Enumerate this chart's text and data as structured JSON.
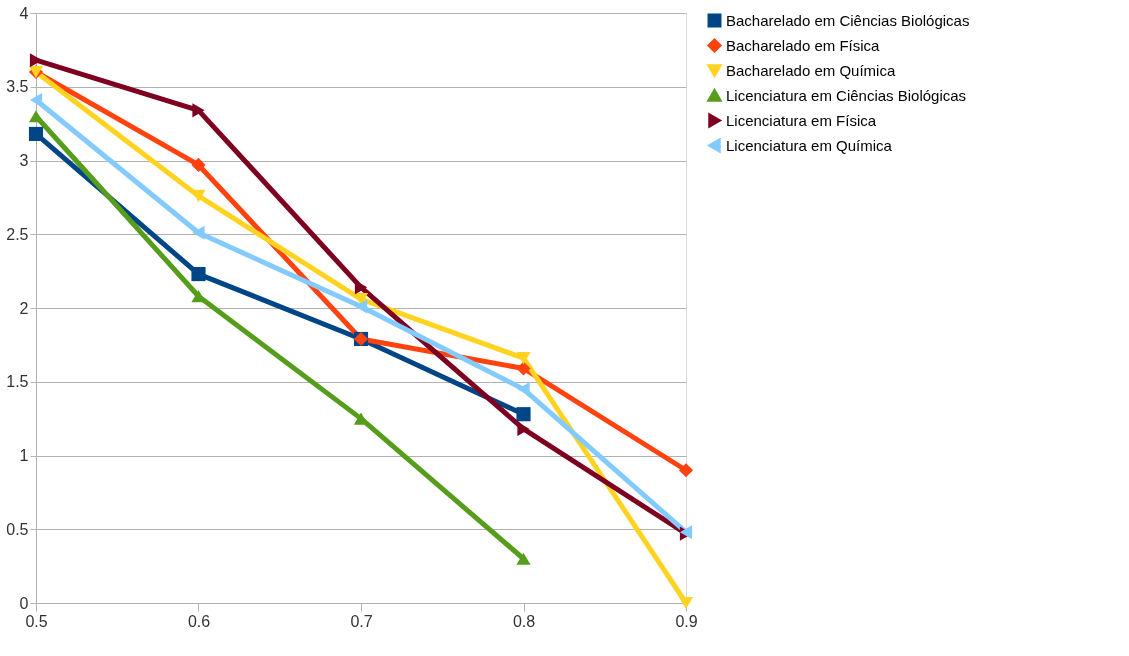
{
  "chart_data": {
    "type": "line",
    "x": [
      0.5,
      0.6,
      0.7,
      0.8,
      0.9
    ],
    "series": [
      {
        "name": "Bacharelado em Ciências Biológicas",
        "color": "#004586",
        "marker": "square",
        "values": [
          3.18,
          2.23,
          1.79,
          1.28,
          null
        ]
      },
      {
        "name": "Bacharelado em Física",
        "color": "#ff420e",
        "marker": "diamond",
        "values": [
          3.6,
          2.97,
          1.79,
          1.59,
          0.9
        ]
      },
      {
        "name": "Bacharelado em Química",
        "color": "#ffd320",
        "marker": "triangle-down",
        "values": [
          3.6,
          2.76,
          2.06,
          1.66,
          0.0
        ]
      },
      {
        "name": "Licenciatura em Ciências Biológicas",
        "color": "#579d1c",
        "marker": "triangle-up",
        "values": [
          3.3,
          2.08,
          1.25,
          0.3,
          null
        ]
      },
      {
        "name": "Licenciatura em Física",
        "color": "#7e0021",
        "marker": "triangle-right",
        "values": [
          3.68,
          3.34,
          2.14,
          1.18,
          0.47
        ]
      },
      {
        "name": "Licenciatura em Química",
        "color": "#83caff",
        "marker": "triangle-left",
        "values": [
          3.41,
          2.51,
          2.01,
          1.45,
          0.48
        ]
      }
    ],
    "xlim": [
      0.5,
      0.9
    ],
    "xticks": [
      0.5,
      0.6,
      0.7,
      0.8,
      0.9
    ],
    "ylim": [
      0,
      4
    ],
    "yticks": [
      0,
      0.5,
      1,
      1.5,
      2,
      2.5,
      3,
      3.5,
      4
    ],
    "grid": "y",
    "legend": "right",
    "line_style": "solid"
  }
}
